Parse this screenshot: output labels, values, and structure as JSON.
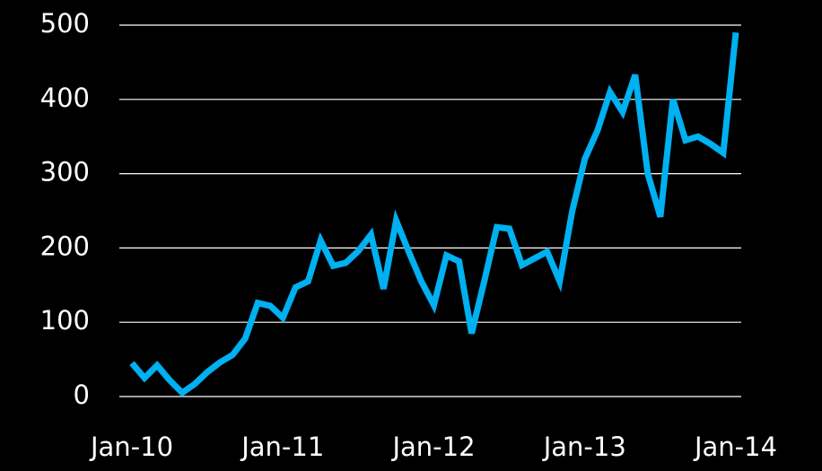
{
  "chart_data": {
    "type": "line",
    "x": [
      "2010-01",
      "2010-02",
      "2010-03",
      "2010-04",
      "2010-05",
      "2010-06",
      "2010-07",
      "2010-08",
      "2010-09",
      "2010-10",
      "2010-11",
      "2010-12",
      "2011-01",
      "2011-02",
      "2011-03",
      "2011-04",
      "2011-05",
      "2011-06",
      "2011-07",
      "2011-08",
      "2011-09",
      "2011-10",
      "2011-11",
      "2011-12",
      "2012-01",
      "2012-02",
      "2012-03",
      "2012-04",
      "2012-05",
      "2012-06",
      "2012-07",
      "2012-08",
      "2012-09",
      "2012-10",
      "2012-11",
      "2012-12",
      "2013-01",
      "2013-02",
      "2013-03",
      "2013-04",
      "2013-05",
      "2013-06",
      "2013-07",
      "2013-08",
      "2013-09",
      "2013-10",
      "2013-11",
      "2013-12",
      "2014-01"
    ],
    "series": [
      {
        "color": "#00b0f0",
        "values": [
          45,
          25,
          42,
          22,
          5,
          17,
          33,
          46,
          56,
          78,
          126,
          122,
          106,
          147,
          155,
          210,
          176,
          180,
          196,
          218,
          145,
          237,
          195,
          155,
          123,
          190,
          182,
          85,
          155,
          228,
          226,
          177,
          186,
          195,
          155,
          250,
          320,
          358,
          410,
          383,
          433,
          300,
          242,
          400,
          345,
          350,
          340,
          328,
          490
        ]
      }
    ],
    "xlim": [
      "2010-01",
      "2014-01"
    ],
    "xticks": [
      {
        "value": "2010-01",
        "label": "Jan-10"
      },
      {
        "value": "2011-01",
        "label": "Jan-11"
      },
      {
        "value": "2012-01",
        "label": "Jan-12"
      },
      {
        "value": "2013-01",
        "label": "Jan-13"
      },
      {
        "value": "2014-01",
        "label": "Jan-14"
      }
    ],
    "ylim": [
      0,
      500
    ],
    "yticks": [
      0,
      100,
      200,
      300,
      400,
      500
    ],
    "grid": true
  }
}
